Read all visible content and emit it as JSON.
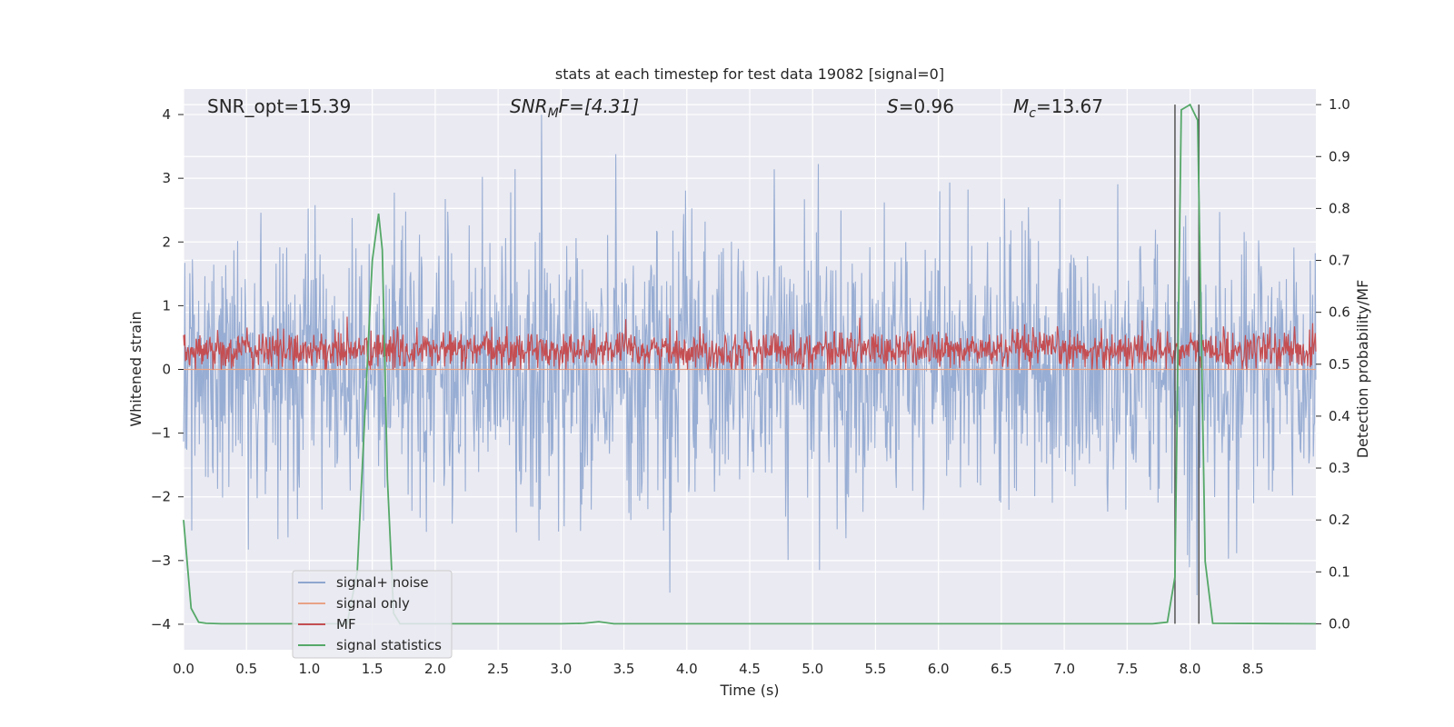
{
  "chart_data": {
    "type": "line",
    "title": "stats at each timestep for test data 19082 [signal=0]",
    "xlabel": "Time (s)",
    "ylabel_left": "Whitened strain",
    "ylabel_right": "Detection probability/MF",
    "xlim": [
      0,
      9.0
    ],
    "ylim_left": [
      -4.4,
      4.4
    ],
    "ylim_right": [
      -0.05,
      1.03
    ],
    "x_ticks": [
      "0.0",
      "0.5",
      "1.0",
      "1.5",
      "2.0",
      "2.5",
      "3.0",
      "3.5",
      "4.0",
      "4.5",
      "5.0",
      "5.5",
      "6.0",
      "6.5",
      "7.0",
      "7.5",
      "8.0",
      "8.5"
    ],
    "y_ticks_left": [
      "4",
      "3",
      "2",
      "1",
      "0",
      "−1",
      "−2",
      "−3",
      "−4"
    ],
    "y_ticks_right": [
      "1.0",
      "0.9",
      "0.8",
      "0.7",
      "0.6",
      "0.5",
      "0.4",
      "0.3",
      "0.2",
      "0.1",
      "0.0"
    ],
    "annotations": {
      "snr_opt": "SNR_opt=15.39",
      "snr_mf_base": "SNR",
      "snr_mf_sub": "M",
      "snr_mf_rest": "F=[4.31]",
      "s_base": "S",
      "s_rest": "=0.96",
      "mc_base": "M",
      "mc_sub": "c",
      "mc_rest": "=13.67"
    },
    "legend": {
      "placement": "lower-left",
      "entries": [
        "signal+ noise",
        "signal only",
        "MF",
        "signal statistics"
      ]
    },
    "series": [
      {
        "name": "signal+ noise",
        "color": "#8fa6cf",
        "kind": "noise",
        "range_approx": [
          -3.9,
          4.0
        ]
      },
      {
        "name": "signal only",
        "color": "#e8a386",
        "kind": "flat",
        "value": 0
      },
      {
        "name": "MF",
        "color": "#c44e52",
        "kind": "noise",
        "range_approx": [
          0.0,
          0.9
        ]
      },
      {
        "name": "signal statistics",
        "color": "#55a868",
        "axis": "right",
        "x": [
          0.0,
          0.06,
          0.12,
          0.18,
          0.3,
          1.3,
          1.38,
          1.44,
          1.5,
          1.55,
          1.58,
          1.62,
          1.67,
          1.72,
          3.0,
          3.18,
          3.3,
          3.42,
          7.7,
          7.82,
          7.88,
          7.93,
          8.0,
          8.06,
          8.12,
          8.18,
          9.0
        ],
        "y": [
          0.2,
          0.03,
          0.003,
          0.001,
          0.0,
          0.0,
          0.1,
          0.4,
          0.7,
          0.79,
          0.72,
          0.28,
          0.02,
          0.0,
          0.0,
          0.001,
          0.004,
          0.0,
          0.0,
          0.003,
          0.09,
          0.99,
          1.0,
          0.97,
          0.12,
          0.001,
          0.0
        ]
      }
    ],
    "vlines": [
      7.88,
      8.07
    ],
    "grid": true
  }
}
